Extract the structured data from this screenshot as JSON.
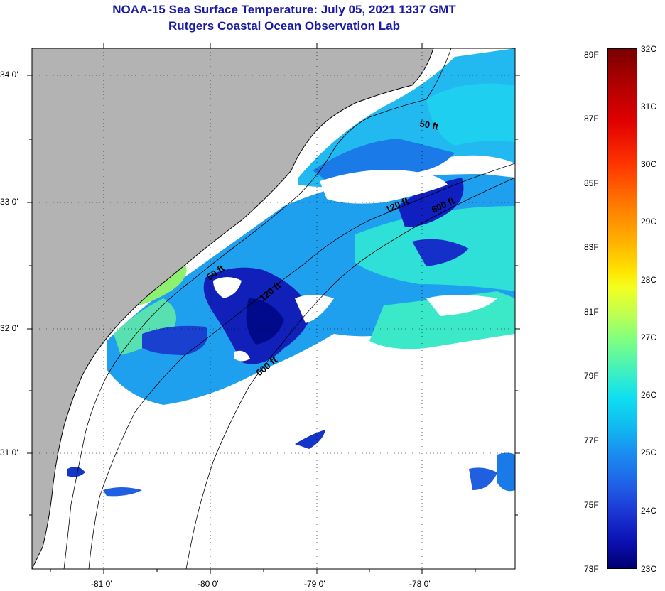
{
  "title": {
    "line1": "NOAA-15 Sea Surface Temperature:  July 05, 2021 1337 GMT",
    "line2": "Rutgers Coastal Ocean Observation Lab"
  },
  "map": {
    "lon_labels": [
      "-81 0'",
      "-80 0'",
      "-79 0'",
      "-78 0'"
    ],
    "lat_labels": [
      "34 0'",
      "33 0'",
      "32 0'",
      "31 0'"
    ],
    "contour_labels": [
      "50 ft",
      "120 ft",
      "600 ft",
      "50 ft",
      "120 ft",
      "600 ft"
    ],
    "colors": {
      "land": "#b3b3b3",
      "cloud": "#ffffff",
      "frame": "#000000"
    }
  },
  "colorbar": {
    "fahrenheit": [
      "89F",
      "87F",
      "85F",
      "83F",
      "81F",
      "79F",
      "77F",
      "75F",
      "73F"
    ],
    "celsius": [
      "32C",
      "31C",
      "30C",
      "29C",
      "28C",
      "27C",
      "26C",
      "25C",
      "24C",
      "23C"
    ]
  }
}
